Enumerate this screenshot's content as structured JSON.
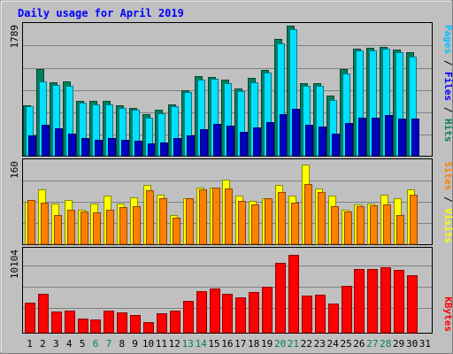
{
  "chart_data": [
    {
      "type": "bar",
      "title": "Daily usage for April 2019",
      "ylabel_parts": [
        "Pages",
        "Files",
        "Hits"
      ],
      "ymax_label": "1789",
      "ylim": [
        0,
        1789
      ],
      "categories": [
        "1",
        "2",
        "3",
        "4",
        "5",
        "6",
        "7",
        "8",
        "9",
        "10",
        "11",
        "12",
        "13",
        "14",
        "15",
        "16",
        "17",
        "18",
        "19",
        "20",
        "21",
        "22",
        "23",
        "24",
        "25",
        "26",
        "27",
        "28",
        "29",
        "30",
        "31"
      ],
      "weekend_days": [
        "6",
        "7",
        "13",
        "14",
        "20",
        "21",
        "27",
        "28"
      ],
      "series": [
        {
          "name": "Hits",
          "color": "#00805c",
          "values": [
            690,
            1180,
            1000,
            1010,
            750,
            740,
            740,
            690,
            650,
            560,
            620,
            700,
            890,
            1080,
            1070,
            1030,
            910,
            1060,
            1170,
            1580,
            1760,
            990,
            990,
            820,
            1180,
            1450,
            1460,
            1480,
            1440,
            1400,
            0
          ]
        },
        {
          "name": "Files",
          "color": "#00e0ff",
          "values": [
            670,
            1010,
            960,
            950,
            720,
            700,
            700,
            650,
            620,
            520,
            580,
            670,
            860,
            1030,
            1050,
            990,
            880,
            1000,
            1130,
            1530,
            1720,
            950,
            950,
            760,
            1120,
            1430,
            1430,
            1450,
            1410,
            1350,
            0
          ]
        },
        {
          "name": "Pages",
          "color": "#0000c0",
          "values": [
            280,
            420,
            370,
            300,
            240,
            220,
            240,
            220,
            210,
            170,
            180,
            240,
            280,
            360,
            430,
            410,
            330,
            380,
            460,
            560,
            640,
            420,
            400,
            300,
            440,
            520,
            520,
            550,
            510,
            500,
            0
          ]
        }
      ]
    },
    {
      "type": "bar",
      "ylabel_parts": [
        "Sites",
        "Visits"
      ],
      "ymax_label": "160",
      "ylim": [
        0,
        160
      ],
      "series": [
        {
          "name": "Visits",
          "color": "#ffff00",
          "values": [
            80,
            105,
            78,
            84,
            65,
            77,
            93,
            77,
            90,
            112,
            95,
            55,
            88,
            107,
            107,
            123,
            93,
            82,
            88,
            113,
            93,
            152,
            106,
            92,
            66,
            75,
            78,
            94,
            87,
            104,
            0
          ]
        },
        {
          "name": "Sites",
          "color": "#ff8000",
          "values": [
            84,
            79,
            55,
            66,
            62,
            60,
            66,
            71,
            73,
            102,
            88,
            50,
            88,
            104,
            108,
            106,
            82,
            75,
            87,
            100,
            79,
            114,
            99,
            73,
            63,
            73,
            74,
            75,
            55,
            95,
            0
          ]
        }
      ]
    },
    {
      "type": "bar",
      "ylabel_parts": [
        "KBytes"
      ],
      "ymax_label": "10104",
      "ylim": [
        0,
        10104
      ],
      "series": [
        {
          "name": "KBytes",
          "color": "#ff0000",
          "values": [
            3700,
            4800,
            2600,
            2700,
            1700,
            1600,
            2700,
            2500,
            2200,
            1300,
            2400,
            2700,
            3900,
            5100,
            5400,
            4800,
            4300,
            5000,
            5700,
            8600,
            9600,
            4600,
            4700,
            3600,
            5800,
            7800,
            7800,
            8000,
            7700,
            7100,
            0
          ]
        }
      ]
    }
  ]
}
